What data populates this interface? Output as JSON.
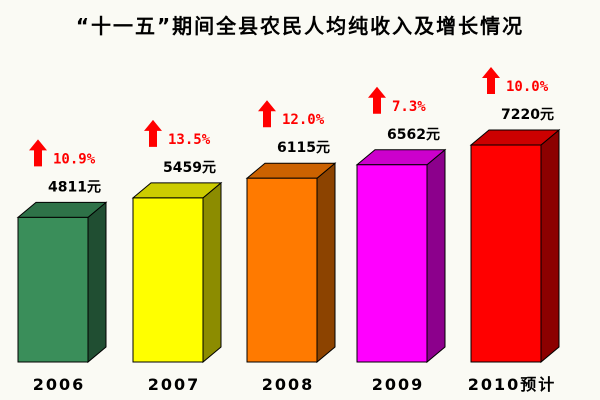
{
  "chart_data": {
    "type": "bar",
    "title": "“十一五”期间全县农民人均纯收入及增长情况",
    "categories": [
      "2006",
      "2007",
      "2008",
      "2009",
      "2010预计"
    ],
    "values": [
      4811,
      5459,
      6115,
      6562,
      7220
    ],
    "value_labels": [
      "4811元",
      "5459元",
      "6115元",
      "6562元",
      "7220元"
    ],
    "growth_labels": [
      "10.9%",
      "13.5%",
      "12.0%",
      "7.3%",
      "10.0%"
    ],
    "ylim": [
      0,
      7220
    ],
    "grid": false,
    "legend": "none",
    "colors": {
      "bars": [
        "#3a8e5a",
        "#ffff00",
        "#ff7a00",
        "#ff00ff",
        "#ff0000"
      ],
      "arrow": "#ff0000",
      "growth_text": "#ff0000",
      "value_text": "#000000"
    }
  }
}
